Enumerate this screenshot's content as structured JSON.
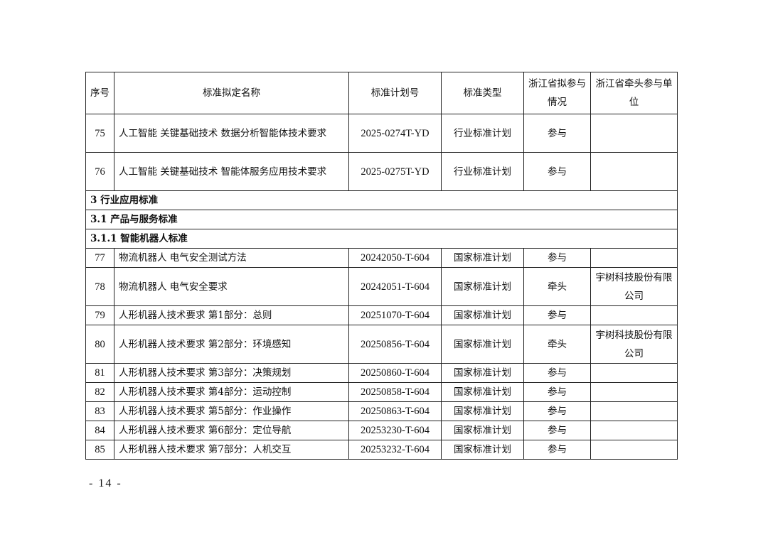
{
  "headers": {
    "seq": "序号",
    "name": "标准拟定名称",
    "plan_no": "标准计划号",
    "type": "标准类型",
    "participation": "浙江省拟参与情况",
    "lead_unit": "浙江省牵头参与单位"
  },
  "rows_a": [
    {
      "seq": "75",
      "name": "人工智能 关键基础技术 数据分析智能体技术要求",
      "plan_no": "2025-0274T-YD",
      "type": "行业标准计划",
      "participation": "参与",
      "lead_unit": ""
    },
    {
      "seq": "76",
      "name": "人工智能 关键基础技术 智能体服务应用技术要求",
      "plan_no": "2025-0275T-YD",
      "type": "行业标准计划",
      "participation": "参与",
      "lead_unit": ""
    }
  ],
  "sections": [
    "3 行业应用标准",
    "3.1 产品与服务标准",
    "3.1.1 智能机器人标准"
  ],
  "rows_b": [
    {
      "seq": "77",
      "name": "物流机器人 电气安全测试方法",
      "plan_no": "20242050-T-604",
      "type": "国家标准计划",
      "participation": "参与",
      "lead_unit": ""
    },
    {
      "seq": "78",
      "name": "物流机器人 电气安全要求",
      "plan_no": "20242051-T-604",
      "type": "国家标准计划",
      "participation": "牵头",
      "lead_unit": "宇树科技股份有限公司"
    },
    {
      "seq": "79",
      "name": "人形机器人技术要求 第1部分：总则",
      "plan_no": "20251070-T-604",
      "type": "国家标准计划",
      "participation": "参与",
      "lead_unit": ""
    },
    {
      "seq": "80",
      "name": "人形机器人技术要求 第2部分：环境感知",
      "plan_no": "20250856-T-604",
      "type": "国家标准计划",
      "participation": "牵头",
      "lead_unit": "宇树科技股份有限公司"
    },
    {
      "seq": "81",
      "name": "人形机器人技术要求 第3部分：决策规划",
      "plan_no": "20250860-T-604",
      "type": "国家标准计划",
      "participation": "参与",
      "lead_unit": ""
    },
    {
      "seq": "82",
      "name": "人形机器人技术要求 第4部分：运动控制",
      "plan_no": "20250858-T-604",
      "type": "国家标准计划",
      "participation": "参与",
      "lead_unit": ""
    },
    {
      "seq": "83",
      "name": "人形机器人技术要求 第5部分：作业操作",
      "plan_no": "20250863-T-604",
      "type": "国家标准计划",
      "participation": "参与",
      "lead_unit": ""
    },
    {
      "seq": "84",
      "name": "人形机器人技术要求 第6部分：定位导航",
      "plan_no": "20253230-T-604",
      "type": "国家标准计划",
      "participation": "参与",
      "lead_unit": ""
    },
    {
      "seq": "85",
      "name": "人形机器人技术要求 第7部分：人机交互",
      "plan_no": "20253232-T-604",
      "type": "国家标准计划",
      "participation": "参与",
      "lead_unit": ""
    }
  ],
  "page_number": "- 14 -"
}
